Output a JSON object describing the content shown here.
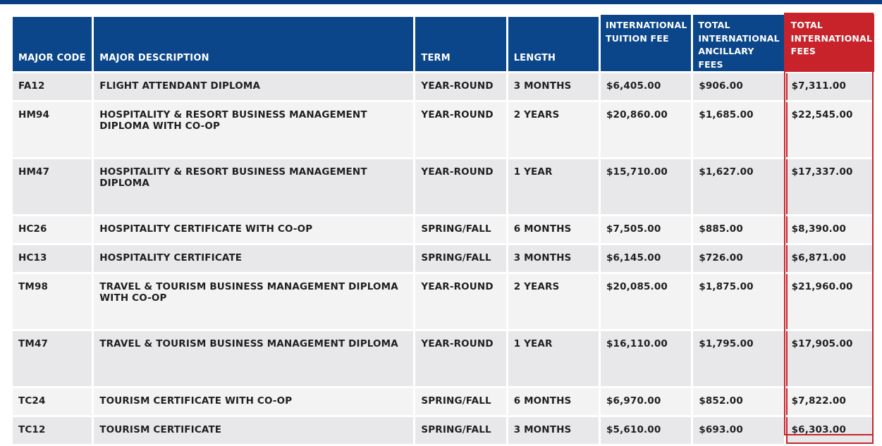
{
  "columns": {
    "major_code": "MAJOR CODE",
    "major_description": "MAJOR DESCRIPTION",
    "term": "TERM",
    "length": "LENGTH",
    "tuition": "INTERNATIONAL TUITION FEE",
    "ancillary": "TOTAL INTERNATIONAL ANCILLARY FEES",
    "total": "TOTAL INTERNATIONAL FEES"
  },
  "accent_colors": {
    "header_blue": "#0a4689",
    "total_red": "#c8232b"
  },
  "rows": [
    {
      "code": "FA12",
      "description": "FLIGHT ATTENDANT DIPLOMA",
      "term": "YEAR-ROUND",
      "length": "3 MONTHS",
      "tuition": "$6,405.00",
      "ancillary": "$906.00",
      "total": "$7,311.00"
    },
    {
      "code": "HM94",
      "description": "HOSPITALITY & RESORT BUSINESS MANAGEMENT DIPLOMA WITH CO-OP",
      "term": "YEAR-ROUND",
      "length": "2 YEARS",
      "tuition": "$20,860.00",
      "ancillary": "$1,685.00",
      "total": "$22,545.00"
    },
    {
      "code": "HM47",
      "description": "HOSPITALITY & RESORT BUSINESS MANAGEMENT DIPLOMA",
      "term": "YEAR-ROUND",
      "length": "1 YEAR",
      "tuition": "$15,710.00",
      "ancillary": "$1,627.00",
      "total": "$17,337.00"
    },
    {
      "code": "HC26",
      "description": "HOSPITALITY CERTIFICATE WITH CO-OP",
      "term": "SPRING/FALL",
      "length": "6 MONTHS",
      "tuition": "$7,505.00",
      "ancillary": "$885.00",
      "total": "$8,390.00"
    },
    {
      "code": "HC13",
      "description": "HOSPITALITY CERTIFICATE",
      "term": "SPRING/FALL",
      "length": "3 MONTHS",
      "tuition": "$6,145.00",
      "ancillary": "$726.00",
      "total": "$6,871.00"
    },
    {
      "code": "TM98",
      "description": "TRAVEL & TOURISM BUSINESS MANAGEMENT DIPLOMA WITH CO-OP",
      "term": "YEAR-ROUND",
      "length": "2 YEARS",
      "tuition": "$20,085.00",
      "ancillary": "$1,875.00",
      "total": "$21,960.00"
    },
    {
      "code": "TM47",
      "description": "TRAVEL & TOURISM BUSINESS MANAGEMENT DIPLOMA",
      "term": "YEAR-ROUND",
      "length": "1 YEAR",
      "tuition": "$16,110.00",
      "ancillary": "$1,795.00",
      "total": "$17,905.00"
    },
    {
      "code": "TC24",
      "description": "TOURISM CERTIFICATE WITH CO-OP",
      "term": "SPRING/FALL",
      "length": "6 MONTHS",
      "tuition": "$6,970.00",
      "ancillary": "$852.00",
      "total": "$7,822.00"
    },
    {
      "code": "TC12",
      "description": "TOURISM CERTIFICATE",
      "term": "SPRING/FALL",
      "length": "3 MONTHS",
      "tuition": "$5,610.00",
      "ancillary": "$693.00",
      "total": "$6,303.00"
    }
  ]
}
